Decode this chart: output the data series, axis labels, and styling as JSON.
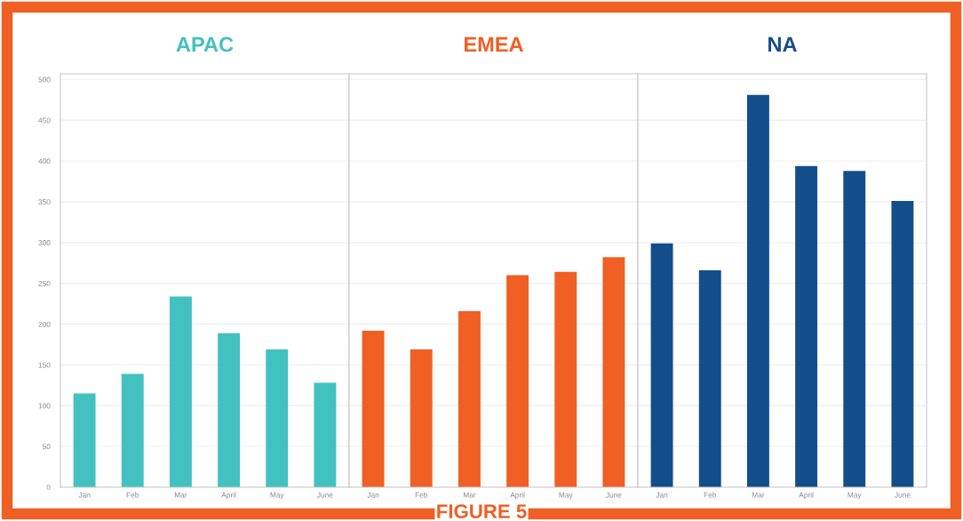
{
  "chart_data": [
    {
      "type": "bar",
      "title": "APAC",
      "categories": [
        "Jan",
        "Feb",
        "Mar",
        "April",
        "May",
        "June"
      ],
      "series": [
        {
          "color": "#43c1c0",
          "values": [
            115,
            139,
            234,
            189,
            169,
            128
          ]
        }
      ],
      "ylim": [
        0,
        507
      ],
      "yticks": [
        0,
        50,
        100,
        150,
        200,
        250,
        300,
        350,
        400,
        450,
        500
      ],
      "grid": "y"
    },
    {
      "type": "bar",
      "title": "EMEA",
      "categories": [
        "Jan",
        "Feb",
        "Mar",
        "April",
        "May",
        "June"
      ],
      "series": [
        {
          "color": "#f05f24",
          "values": [
            192,
            169,
            216,
            260,
            264,
            282
          ]
        }
      ],
      "ylim": [
        0,
        507
      ],
      "tick_labels": "x",
      "grid": "y",
      "annotations": [
        "FIGURE 5"
      ]
    },
    {
      "type": "bar",
      "title": "NA",
      "categories": [
        "Jan",
        "Feb",
        "Mar",
        "April",
        "May",
        "June"
      ],
      "series": [
        {
          "color": "#134e8a",
          "values": [
            299,
            266,
            481,
            394,
            388,
            351
          ]
        }
      ],
      "ylim": [
        0,
        507
      ],
      "tick_labels": "x",
      "grid": "y"
    }
  ]
}
